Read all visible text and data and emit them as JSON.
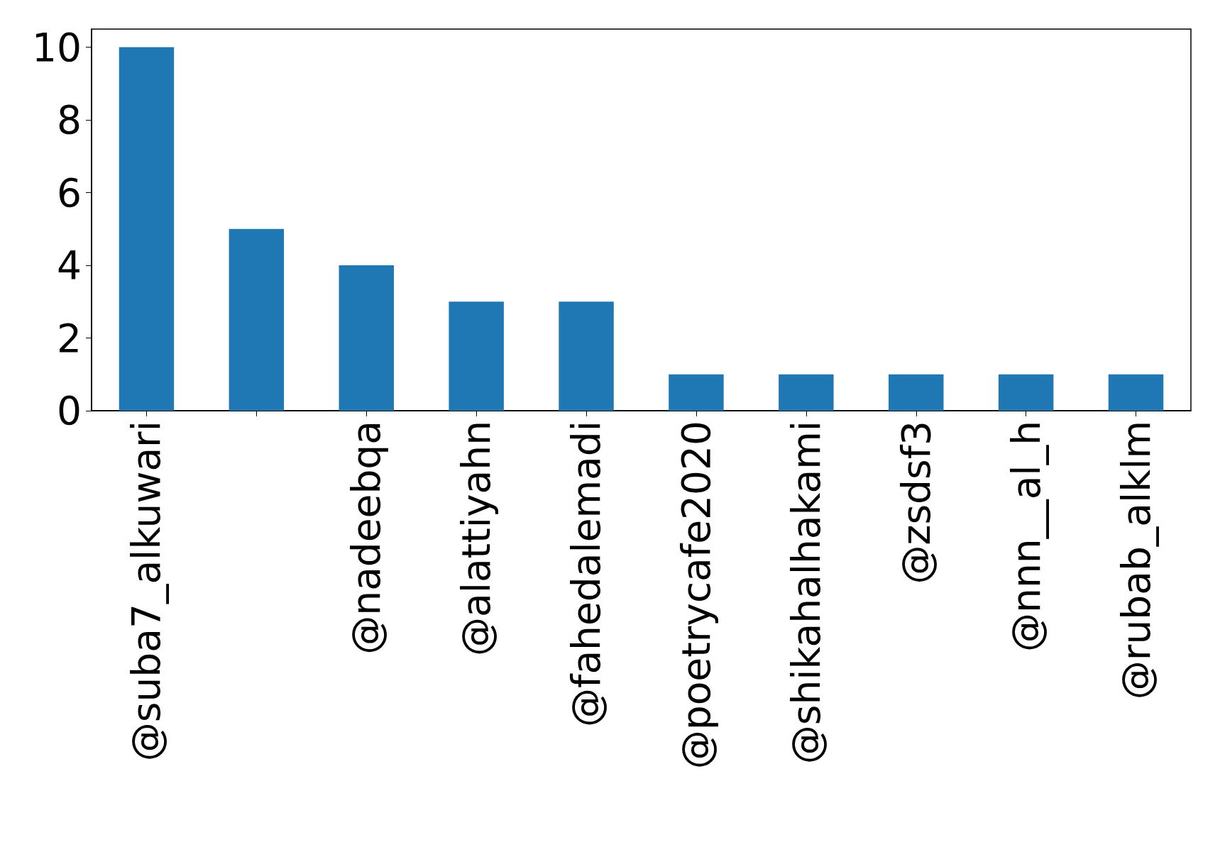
{
  "chart_data": {
    "type": "bar",
    "categories": [
      "@suba7_alkuwari",
      null,
      "@nadeebqa",
      "@alattiyahn",
      "@fahedalemadi",
      "@poetrycafe2020",
      "@shikahalhakami",
      "@zsdsf3",
      "@nnn__al_h",
      "@rubab_alklm"
    ],
    "values": [
      10,
      5,
      4,
      3,
      3,
      1,
      1,
      1,
      1,
      1
    ],
    "color": "#1f77b4",
    "ylim": [
      0,
      10.5
    ],
    "yticks": [
      0,
      2,
      4,
      6,
      8,
      10
    ],
    "grid": false
  }
}
